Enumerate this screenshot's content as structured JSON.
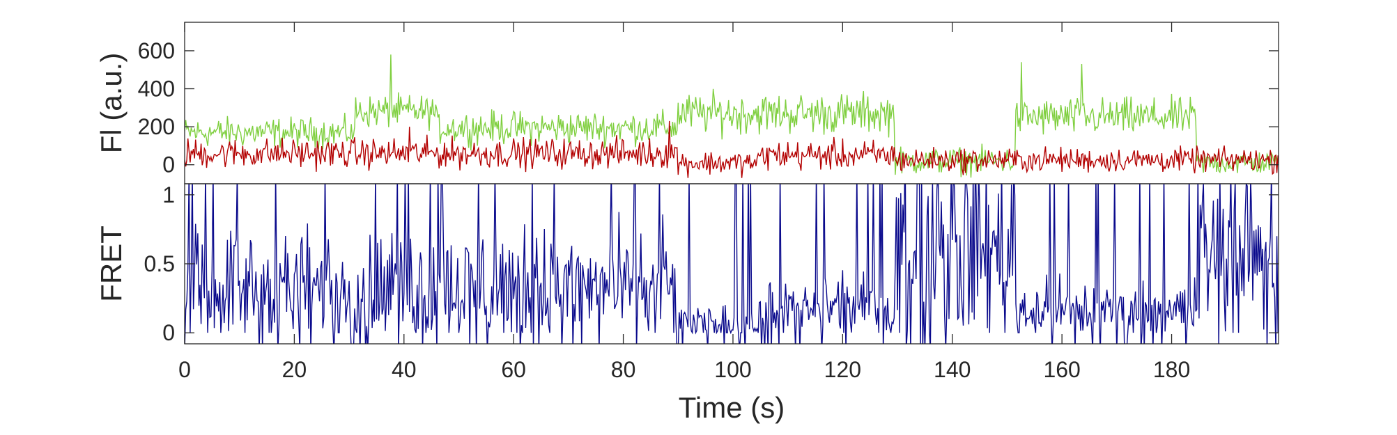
{
  "chart_data": {
    "type": "line",
    "xlabel": "Time (s)",
    "xlim": [
      0,
      199.5
    ],
    "x_ticks": [
      0,
      20,
      40,
      60,
      80,
      100,
      120,
      140,
      160,
      180
    ],
    "panels": [
      {
        "name": "fluorescence",
        "ylabel": "Fl (a.u.)",
        "ylim": [
          -100,
          750
        ],
        "y_ticks": [
          0,
          200,
          400,
          600
        ],
        "series": [
          {
            "role": "donor",
            "color": "#7fcf3f",
            "segments": [
              {
                "x": [
                  0,
                  31
                ],
                "level": 170,
                "noise": 55
              },
              {
                "x": [
                  31,
                  46
                ],
                "level": 280,
                "noise": 60
              },
              {
                "x": [
                  46,
                  90
                ],
                "level": 195,
                "noise": 60
              },
              {
                "x": [
                  90,
                  129.5
                ],
                "level": 270,
                "noise": 75
              },
              {
                "x": [
                  129.5,
                  151.5
                ],
                "level": 20,
                "noise": 50
              },
              {
                "x": [
                  151.5,
                  184.5
                ],
                "level": 250,
                "noise": 70
              },
              {
                "x": [
                  184.5,
                  199.5
                ],
                "level": 10,
                "noise": 45
              }
            ],
            "spikes": [
              [
                37.5,
                580
              ],
              [
                152.5,
                540
              ],
              [
                163.5,
                530
              ]
            ]
          },
          {
            "role": "acceptor",
            "color": "#b30000",
            "segments": [
              {
                "x": [
                  0,
                  90
                ],
                "level": 60,
                "noise": 55
              },
              {
                "x": [
                  90,
                  105
                ],
                "level": 10,
                "noise": 45
              },
              {
                "x": [
                  105,
                  129.5
                ],
                "level": 50,
                "noise": 55
              },
              {
                "x": [
                  129.5,
                  199.5
                ],
                "level": 25,
                "noise": 45
              }
            ],
            "spikes": [
              [
                41,
                200
              ],
              [
                88.5,
                230
              ]
            ]
          }
        ]
      },
      {
        "name": "fret",
        "ylabel": "FRET",
        "ylim": [
          -0.08,
          1.08
        ],
        "y_ticks": [
          0,
          0.5,
          1
        ],
        "series": [
          {
            "role": "fret",
            "color": "#0a0a8c",
            "segments": [
              {
                "x": [
                  0,
                  90
                ],
                "level": 0.32,
                "noise": 0.26
              },
              {
                "x": [
                  90,
                  105
                ],
                "level": 0.06,
                "noise": 0.08
              },
              {
                "x": [
                  105,
                  129.5
                ],
                "level": 0.18,
                "noise": 0.14
              },
              {
                "x": [
                  129.5,
                  151.5
                ],
                "level": 0.62,
                "noise": 0.42
              },
              {
                "x": [
                  151.5,
                  184.5
                ],
                "level": 0.16,
                "noise": 0.14
              },
              {
                "x": [
                  184.5,
                  199.5
                ],
                "level": 0.6,
                "noise": 0.38
              }
            ]
          }
        ]
      }
    ]
  }
}
